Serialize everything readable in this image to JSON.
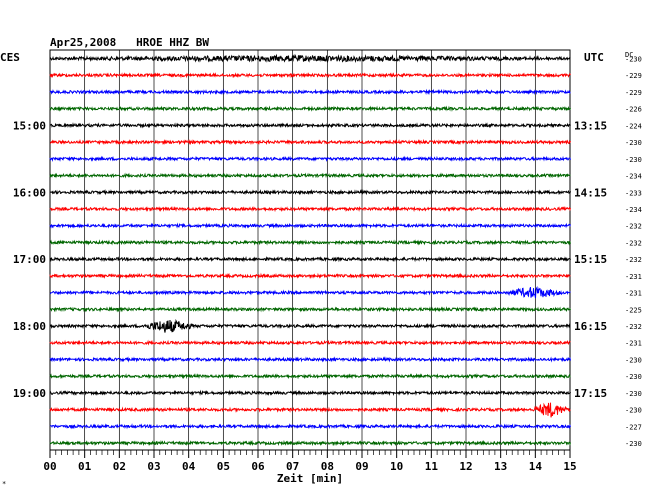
{
  "header": {
    "title": "Apr25,2008   HROE HHZ BW",
    "left_tz": "CES",
    "right_tz": "UTC",
    "dc_label": "DC"
  },
  "chart_data": {
    "type": "line",
    "title": "Apr25,2008   HROE HHZ BW",
    "xlabel": "Zeit [min]",
    "xlim": [
      0,
      15
    ],
    "x_ticks": [
      "00",
      "01",
      "02",
      "03",
      "04",
      "05",
      "06",
      "07",
      "08",
      "09",
      "10",
      "11",
      "12",
      "13",
      "14",
      "15"
    ],
    "grid": true,
    "trace_colors": [
      "#000000",
      "#ff0000",
      "#0000ff",
      "#006600"
    ],
    "left_time_labels": [
      {
        "row": 4,
        "text": "15:00"
      },
      {
        "row": 8,
        "text": "16:00"
      },
      {
        "row": 12,
        "text": "17:00"
      },
      {
        "row": 16,
        "text": "18:00"
      },
      {
        "row": 20,
        "text": "19:00"
      }
    ],
    "right_time_labels": [
      {
        "row": 4,
        "text": "13:15"
      },
      {
        "row": 8,
        "text": "14:15"
      },
      {
        "row": 12,
        "text": "15:15"
      },
      {
        "row": 16,
        "text": "16:15"
      },
      {
        "row": 20,
        "text": "17:15"
      }
    ],
    "dc_offsets": [
      "-230",
      "-229",
      "-229",
      "-226",
      "-224",
      "-230",
      "-230",
      "-234",
      "-233",
      "-234",
      "-232",
      "-232",
      "-232",
      "-231",
      "-231",
      "-225",
      "-232",
      "-231",
      "-230",
      "-230",
      "-230",
      "-230",
      "-227",
      "-230"
    ],
    "events": [
      {
        "row": 16,
        "minute_start": 2.6,
        "minute_end": 4.2,
        "amplitude": 6
      },
      {
        "row": 14,
        "minute_start": 13.1,
        "minute_end": 14.8,
        "amplitude": 5
      },
      {
        "row": 21,
        "minute_start": 13.9,
        "minute_end": 14.95,
        "amplitude": 7
      },
      {
        "row": 0,
        "minute_start": 0.0,
        "minute_end": 15.0,
        "amplitude": 2
      }
    ]
  }
}
